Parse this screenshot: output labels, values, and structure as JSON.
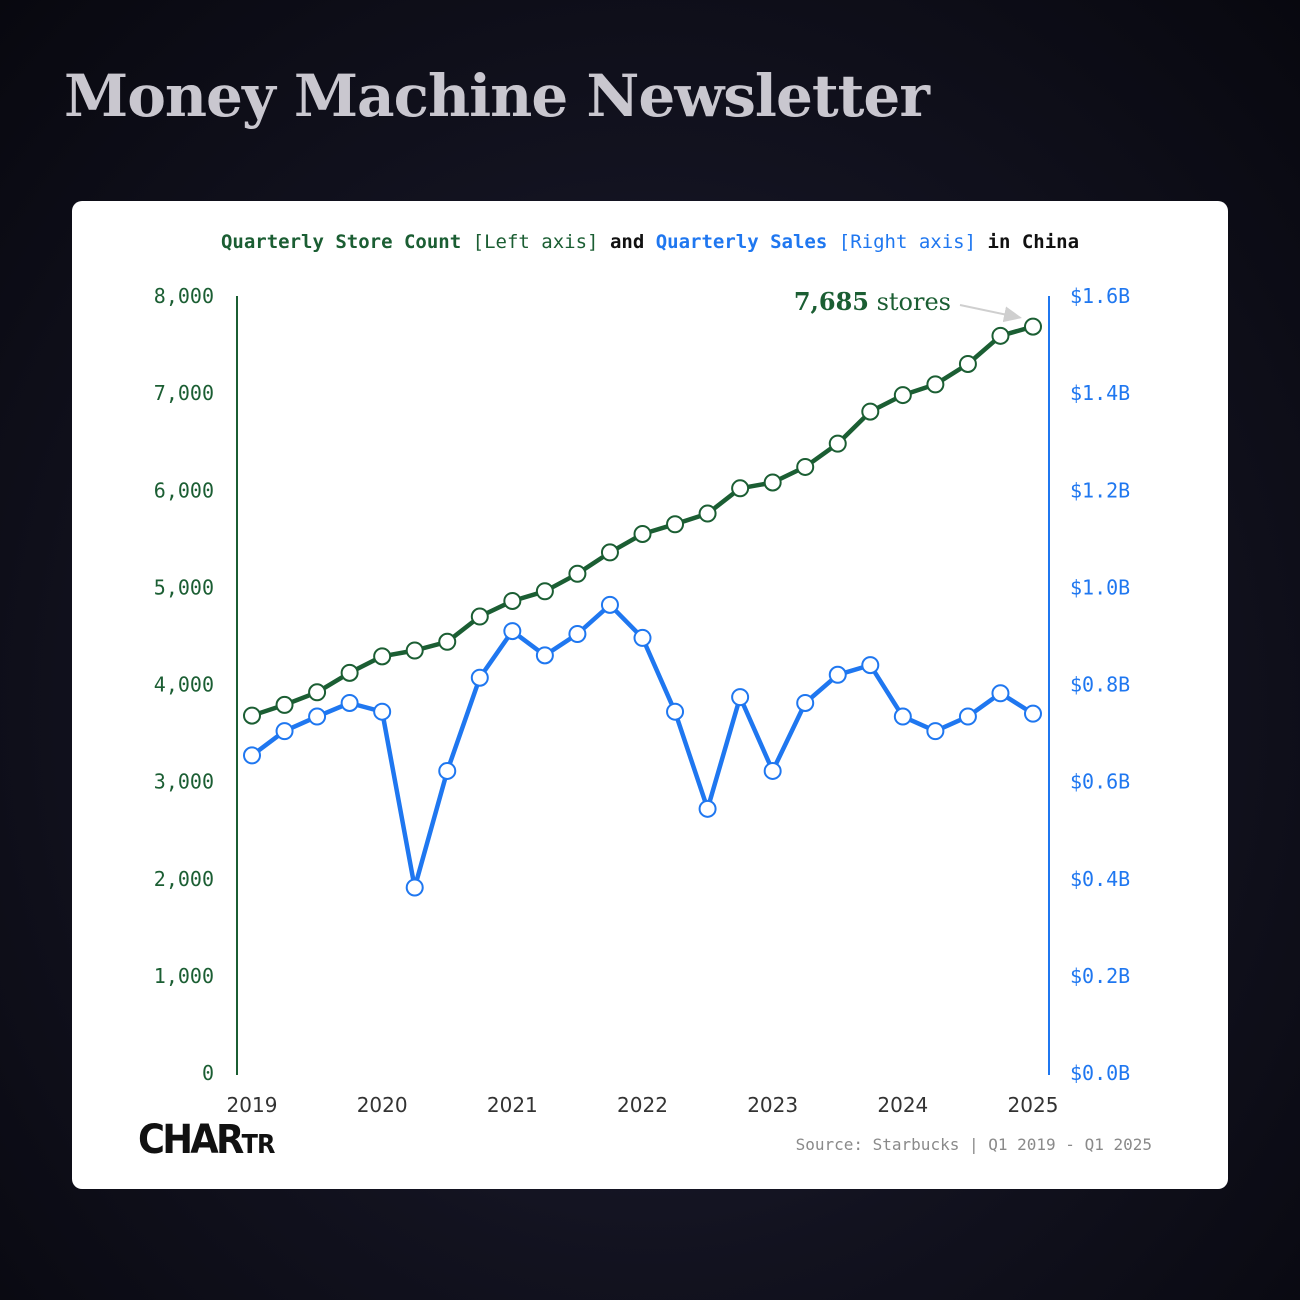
{
  "header": {
    "title": "Money Machine Newsletter"
  },
  "chart_heading": {
    "part1": "Quarterly Store Count",
    "part2": "[Left axis]",
    "part3": "and",
    "part4": "Quarterly Sales",
    "part5": "[Right axis]",
    "part6": "in China"
  },
  "footer": {
    "logo_main": "CHAR",
    "logo_small": "TR",
    "source": "Source: Starbucks | Q1 2019 - Q1 2025"
  },
  "colors": {
    "stores": "#1b5e33",
    "sales": "#1f77f0"
  },
  "chart_data": {
    "type": "line",
    "title": "Quarterly Store Count [Left axis] and Quarterly Sales [Right axis] in China",
    "x_tick_labels": [
      "2019",
      "2020",
      "2021",
      "2022",
      "2023",
      "2024",
      "2025"
    ],
    "left_axis": {
      "range": [
        0,
        8000
      ],
      "tick_values": [
        0,
        1000,
        2000,
        3000,
        4000,
        5000,
        6000,
        7000,
        8000
      ],
      "tick_labels": [
        "0",
        "1,000",
        "2,000",
        "3,000",
        "4,000",
        "5,000",
        "6,000",
        "7,000",
        "8,000"
      ]
    },
    "right_axis": {
      "range": [
        0,
        1.6
      ],
      "tick_values": [
        0,
        0.2,
        0.4,
        0.6,
        0.8,
        1.0,
        1.2,
        1.4,
        1.6
      ],
      "tick_labels": [
        "$0.0B",
        "$0.2B",
        "$0.4B",
        "$0.6B",
        "$0.8B",
        "$1.0B",
        "$1.2B",
        "$1.4B",
        "$1.6B"
      ]
    },
    "x": [
      "Q1 2019",
      "Q2 2019",
      "Q3 2019",
      "Q4 2019",
      "Q1 2020",
      "Q2 2020",
      "Q3 2020",
      "Q4 2020",
      "Q1 2021",
      "Q2 2021",
      "Q3 2021",
      "Q4 2021",
      "Q1 2022",
      "Q2 2022",
      "Q3 2022",
      "Q4 2022",
      "Q1 2023",
      "Q2 2023",
      "Q3 2023",
      "Q4 2023",
      "Q1 2024",
      "Q2 2024",
      "Q3 2024",
      "Q4 2024",
      "Q1 2025"
    ],
    "series": [
      {
        "name": "Quarterly Store Count",
        "axis": "left",
        "values": [
          3680,
          3790,
          3920,
          4120,
          4290,
          4350,
          4440,
          4700,
          4860,
          4960,
          5140,
          5360,
          5550,
          5650,
          5760,
          6020,
          6080,
          6240,
          6480,
          6810,
          6980,
          7090,
          7300,
          7590,
          7685
        ]
      },
      {
        "name": "Quarterly Sales",
        "axis": "right",
        "values": [
          0.654,
          0.704,
          0.734,
          0.762,
          0.744,
          0.382,
          0.622,
          0.814,
          0.91,
          0.86,
          0.904,
          0.964,
          0.896,
          0.744,
          0.544,
          0.774,
          0.622,
          0.762,
          0.82,
          0.84,
          0.734,
          0.704,
          0.734,
          0.782,
          0.74
        ]
      }
    ],
    "annotation": {
      "text": "7,685 stores",
      "series": "Quarterly Store Count",
      "point": "Q1 2025"
    },
    "grid": false,
    "legend": "none"
  }
}
